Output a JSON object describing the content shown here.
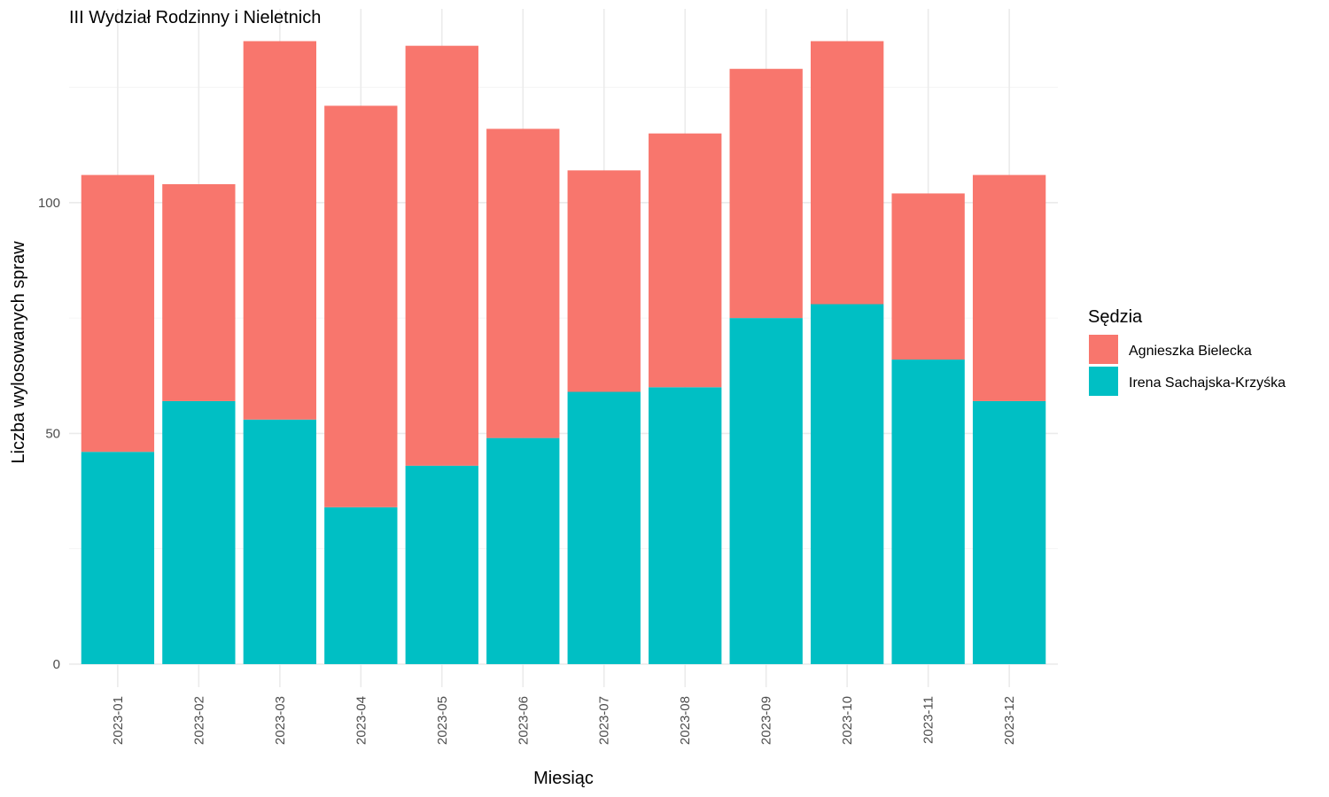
{
  "chart_data": {
    "type": "bar",
    "stacked": true,
    "title": "III Wydział Rodzinny i Nieletnich",
    "xlabel": "Miesiąc",
    "ylabel": "Liczba wylosowanych spraw",
    "categories": [
      "2023-01",
      "2023-02",
      "2023-03",
      "2023-04",
      "2023-05",
      "2023-06",
      "2023-07",
      "2023-08",
      "2023-09",
      "2023-10",
      "2023-11",
      "2023-12"
    ],
    "series": [
      {
        "name": "Irena Sachajska-Krzyśka",
        "color": "#00BFC4",
        "values": [
          46,
          57,
          53,
          34,
          43,
          49,
          59,
          60,
          75,
          78,
          66,
          57
        ]
      },
      {
        "name": "Agnieszka Bielecka",
        "color": "#F8766D",
        "values": [
          60,
          47,
          82,
          87,
          91,
          67,
          48,
          55,
          54,
          57,
          36,
          49
        ]
      }
    ],
    "yticks": [
      0,
      50,
      100
    ],
    "ylim": [
      -5,
      142
    ],
    "grid": true,
    "legend": {
      "title": "Sędzia",
      "position": "right",
      "order": [
        "Agnieszka Bielecka",
        "Irena Sachajska-Krzyśka"
      ]
    }
  }
}
